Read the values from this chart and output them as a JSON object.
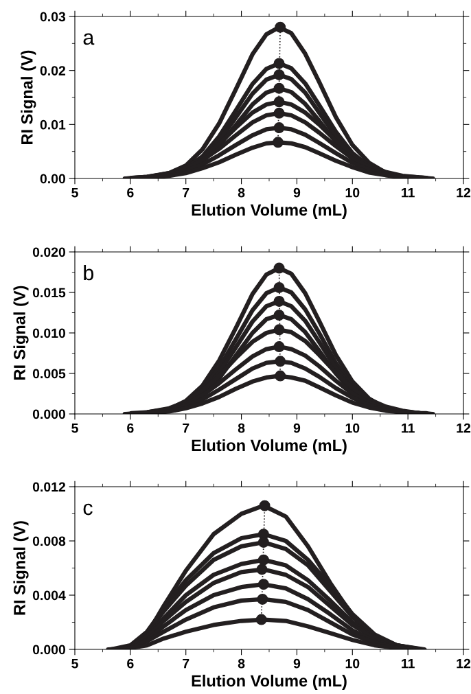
{
  "chart_data": [
    {
      "type": "line",
      "xlabel": "Elution Volume (mL)",
      "ylabel": "RI Signal (V)",
      "annotations": [
        "a"
      ],
      "grid": false,
      "legend": false,
      "xlim": [
        5,
        12
      ],
      "xticks": [
        5,
        6,
        7,
        8,
        9,
        10,
        11,
        12
      ],
      "ylim": [
        0,
        0.03
      ],
      "yticks": [
        {
          "value": 0,
          "label": "0.00"
        },
        {
          "value": 0.01,
          "label": "0.01"
        },
        {
          "value": 0.02,
          "label": "0.02"
        },
        {
          "value": 0.03,
          "label": "0.03"
        }
      ],
      "series": [
        {
          "color": "#231f20",
          "x": [
            5.9,
            6.3,
            6.7,
            7.0,
            7.3,
            7.6,
            7.9,
            8.2,
            8.45,
            8.68,
            8.9,
            9.15,
            9.4,
            9.7,
            10.0,
            10.3,
            10.6,
            10.9,
            11.2,
            11.45
          ],
          "values": [
            0.0,
            0.0002,
            0.001,
            0.0024,
            0.0054,
            0.0102,
            0.0165,
            0.023,
            0.0267,
            0.028,
            0.0269,
            0.0231,
            0.0179,
            0.0114,
            0.0062,
            0.0029,
            0.0011,
            0.0004,
            0.0001,
            0.0
          ]
        },
        {
          "color": "#231f20",
          "x": [
            5.93,
            6.3,
            6.7,
            7.0,
            7.3,
            7.6,
            7.9,
            8.2,
            8.45,
            8.68,
            8.9,
            9.15,
            9.4,
            9.7,
            10.0,
            10.3,
            10.6,
            10.9,
            11.2,
            11.42
          ],
          "values": [
            0.0,
            0.0002,
            0.0007,
            0.0019,
            0.0041,
            0.0078,
            0.0126,
            0.0175,
            0.0203,
            0.0213,
            0.0204,
            0.0176,
            0.0136,
            0.0087,
            0.0047,
            0.0022,
            0.0009,
            0.0003,
            0.0001,
            0.0
          ]
        },
        {
          "color": "#231f20",
          "x": [
            5.96,
            6.3,
            6.7,
            7.0,
            7.3,
            7.6,
            7.9,
            8.2,
            8.45,
            8.68,
            8.9,
            9.15,
            9.4,
            9.7,
            10.0,
            10.3,
            10.6,
            10.9,
            11.2,
            11.39
          ],
          "values": [
            0.0,
            0.0001,
            0.0007,
            0.0017,
            0.0037,
            0.007,
            0.0113,
            0.0157,
            0.0183,
            0.0192,
            0.0184,
            0.0159,
            0.0122,
            0.0078,
            0.0042,
            0.002,
            0.0008,
            0.0003,
            0.0001,
            0.0
          ]
        },
        {
          "color": "#231f20",
          "x": [
            5.99,
            6.3,
            6.7,
            7.0,
            7.3,
            7.6,
            7.9,
            8.2,
            8.45,
            8.68,
            8.9,
            9.15,
            9.4,
            9.7,
            10.0,
            10.3,
            10.6,
            10.9,
            11.2,
            11.36
          ],
          "values": [
            0.0,
            0.0001,
            0.0006,
            0.0015,
            0.0032,
            0.0061,
            0.0099,
            0.0137,
            0.0159,
            0.0167,
            0.016,
            0.0138,
            0.0107,
            0.0068,
            0.0037,
            0.0017,
            0.0007,
            0.0002,
            0.0001,
            0.0
          ]
        },
        {
          "color": "#231f20",
          "x": [
            6.02,
            6.3,
            6.7,
            7.0,
            7.3,
            7.6,
            7.9,
            8.2,
            8.45,
            8.68,
            8.9,
            9.15,
            9.4,
            9.7,
            10.0,
            10.3,
            10.6,
            10.9,
            11.2,
            11.33
          ],
          "values": [
            0.0001,
            0.0003,
            0.001,
            0.0021,
            0.0039,
            0.0064,
            0.0094,
            0.0122,
            0.0137,
            0.0142,
            0.0137,
            0.0122,
            0.01,
            0.007,
            0.0044,
            0.0024,
            0.0012,
            0.0005,
            0.0002,
            0.0001
          ]
        },
        {
          "color": "#231f20",
          "x": [
            6.05,
            6.3,
            6.7,
            7.0,
            7.3,
            7.6,
            7.9,
            8.2,
            8.45,
            8.68,
            8.9,
            9.15,
            9.4,
            9.7,
            10.0,
            10.3,
            10.6,
            10.9,
            11.2,
            11.3
          ],
          "values": [
            0.0001,
            0.0003,
            0.0009,
            0.0018,
            0.0034,
            0.0055,
            0.008,
            0.0104,
            0.0117,
            0.0121,
            0.0117,
            0.0104,
            0.0085,
            0.006,
            0.0037,
            0.0021,
            0.001,
            0.0004,
            0.0002,
            0.0001
          ]
        },
        {
          "color": "#231f20",
          "x": [
            6.08,
            6.3,
            6.7,
            7.0,
            7.3,
            7.6,
            7.9,
            8.2,
            8.45,
            8.68,
            8.9,
            9.15,
            9.4,
            9.7,
            10.0,
            10.3,
            10.6,
            10.9,
            11.2,
            11.27
          ],
          "values": [
            0.0001,
            0.0002,
            0.0007,
            0.0014,
            0.0026,
            0.0043,
            0.0062,
            0.008,
            0.0091,
            0.0094,
            0.0091,
            0.0081,
            0.0066,
            0.0047,
            0.0029,
            0.0016,
            0.0008,
            0.0003,
            0.0001,
            0.0001
          ]
        },
        {
          "color": "#231f20",
          "x": [
            6.11,
            6.3,
            6.7,
            7.0,
            7.3,
            7.6,
            7.9,
            8.2,
            8.45,
            8.68,
            8.9,
            9.15,
            9.4,
            9.7,
            10.0,
            10.3,
            10.6,
            10.9,
            11.2,
            11.24
          ],
          "values": [
            0.0,
            0.0001,
            0.0005,
            0.001,
            0.0019,
            0.003,
            0.0044,
            0.0057,
            0.0065,
            0.0067,
            0.0065,
            0.0058,
            0.0047,
            0.0033,
            0.0021,
            0.0011,
            0.0006,
            0.0002,
            0.0001,
            0.0
          ]
        },
        {
          "type": "line",
          "line_style": "dotted",
          "color": "#231f20",
          "x": [
            8.66,
            8.7
          ],
          "values": [
            0.0067,
            0.028
          ]
        },
        {
          "type": "scatter",
          "marker": "circle",
          "color": "#231f20",
          "x": [
            8.7,
            8.68,
            8.68,
            8.68,
            8.68,
            8.68,
            8.68,
            8.66
          ],
          "values": [
            0.028,
            0.0213,
            0.0192,
            0.0167,
            0.0142,
            0.0121,
            0.0094,
            0.0067
          ]
        }
      ]
    },
    {
      "type": "line",
      "xlabel": "Elution Volume (mL)",
      "ylabel": "RI Signal (V)",
      "annotations": [
        "b"
      ],
      "grid": false,
      "legend": false,
      "xlim": [
        5,
        12
      ],
      "xticks": [
        5,
        6,
        7,
        8,
        9,
        10,
        11,
        12
      ],
      "ylim": [
        0,
        0.02
      ],
      "yticks": [
        {
          "value": 0,
          "label": "0.000"
        },
        {
          "value": 0.005,
          "label": "0.005"
        },
        {
          "value": 0.01,
          "label": "0.010"
        },
        {
          "value": 0.015,
          "label": "0.015"
        },
        {
          "value": 0.02,
          "label": "0.020"
        }
      ],
      "series": [
        {
          "color": "#231f20",
          "x": [
            5.9,
            6.3,
            6.7,
            7.0,
            7.3,
            7.6,
            7.9,
            8.2,
            8.45,
            8.68,
            8.9,
            9.15,
            9.4,
            9.7,
            10.0,
            10.3,
            10.6,
            10.9,
            11.2,
            11.45
          ],
          "values": [
            0.0,
            0.0001,
            0.0006,
            0.0016,
            0.0035,
            0.0066,
            0.0106,
            0.0148,
            0.0172,
            0.018,
            0.0173,
            0.0149,
            0.0115,
            0.0073,
            0.004,
            0.0019,
            0.0007,
            0.0003,
            0.0001,
            0.0
          ]
        },
        {
          "color": "#231f20",
          "x": [
            5.93,
            6.3,
            6.7,
            7.0,
            7.3,
            7.6,
            7.9,
            8.2,
            8.45,
            8.68,
            8.9,
            9.15,
            9.4,
            9.7,
            10.0,
            10.3,
            10.6,
            10.9,
            11.2,
            11.42
          ],
          "values": [
            0.0,
            0.0001,
            0.0005,
            0.0014,
            0.003,
            0.0057,
            0.0092,
            0.0128,
            0.0149,
            0.0156,
            0.015,
            0.0129,
            0.01,
            0.0063,
            0.0034,
            0.0016,
            0.0006,
            0.0002,
            0.0001,
            0.0
          ]
        },
        {
          "color": "#231f20",
          "x": [
            5.96,
            6.3,
            6.7,
            7.0,
            7.3,
            7.6,
            7.9,
            8.2,
            8.45,
            8.68,
            8.9,
            9.15,
            9.4,
            9.7,
            10.0,
            10.3,
            10.6,
            10.9,
            11.2,
            11.39
          ],
          "values": [
            0.0,
            0.0001,
            0.0005,
            0.0012,
            0.0027,
            0.0051,
            0.0082,
            0.0114,
            0.0133,
            0.0139,
            0.0133,
            0.0115,
            0.0089,
            0.0057,
            0.0031,
            0.0014,
            0.0006,
            0.0002,
            0.0001,
            0.0
          ]
        },
        {
          "color": "#231f20",
          "x": [
            5.99,
            6.3,
            6.7,
            7.0,
            7.3,
            7.6,
            7.9,
            8.2,
            8.45,
            8.68,
            8.9,
            9.15,
            9.4,
            9.7,
            10.0,
            10.3,
            10.6,
            10.9,
            11.2,
            11.36
          ],
          "values": [
            0.0,
            0.0001,
            0.0004,
            0.0011,
            0.0023,
            0.0044,
            0.0072,
            0.01,
            0.0117,
            0.0122,
            0.0117,
            0.0101,
            0.0078,
            0.005,
            0.0027,
            0.0013,
            0.0005,
            0.0002,
            0.0,
            0.0
          ]
        },
        {
          "color": "#231f20",
          "x": [
            6.02,
            6.3,
            6.7,
            7.0,
            7.3,
            7.6,
            7.9,
            8.2,
            8.45,
            8.68,
            8.9,
            9.15,
            9.4,
            9.7,
            10.0,
            10.3,
            10.6,
            10.9,
            11.2,
            11.33
          ],
          "values": [
            0.0001,
            0.0002,
            0.0007,
            0.0015,
            0.0029,
            0.0047,
            0.0069,
            0.0089,
            0.01,
            0.0104,
            0.0101,
            0.009,
            0.0073,
            0.0051,
            0.0032,
            0.0018,
            0.0009,
            0.0004,
            0.0001,
            0.0001
          ]
        },
        {
          "color": "#231f20",
          "x": [
            6.05,
            6.3,
            6.7,
            7.0,
            7.3,
            7.6,
            7.9,
            8.2,
            8.45,
            8.68,
            8.9,
            9.15,
            9.4,
            9.7,
            10.0,
            10.3,
            10.6,
            10.9,
            11.2,
            11.3
          ],
          "values": [
            0.0,
            0.0002,
            0.0006,
            0.0012,
            0.0023,
            0.0038,
            0.0055,
            0.0071,
            0.008,
            0.0083,
            0.008,
            0.0072,
            0.0059,
            0.0041,
            0.0025,
            0.0014,
            0.0007,
            0.0003,
            0.0001,
            0.0
          ]
        },
        {
          "color": "#231f20",
          "x": [
            6.08,
            6.3,
            6.7,
            7.0,
            7.3,
            7.6,
            7.9,
            8.2,
            8.45,
            8.68,
            8.9,
            9.15,
            9.4,
            9.7,
            10.0,
            10.3,
            10.6,
            10.9,
            11.2,
            11.27
          ],
          "values": [
            0.0,
            0.0001,
            0.0005,
            0.001,
            0.0018,
            0.003,
            0.0043,
            0.0056,
            0.0063,
            0.0065,
            0.0063,
            0.0056,
            0.0046,
            0.0032,
            0.002,
            0.0011,
            0.0005,
            0.0002,
            0.0001,
            0.0
          ]
        },
        {
          "color": "#231f20",
          "x": [
            6.11,
            6.3,
            6.7,
            7.0,
            7.3,
            7.6,
            7.9,
            8.2,
            8.45,
            8.68,
            8.9,
            9.15,
            9.4,
            9.7,
            10.0,
            10.3,
            10.6,
            10.9,
            11.2,
            11.24
          ],
          "values": [
            0.0,
            0.0001,
            0.0003,
            0.0007,
            0.0013,
            0.0021,
            0.0031,
            0.004,
            0.0045,
            0.0047,
            0.0045,
            0.0041,
            0.0033,
            0.0023,
            0.0014,
            0.0008,
            0.0004,
            0.0002,
            0.0001,
            0.0
          ]
        },
        {
          "type": "line",
          "line_style": "dotted",
          "color": "#231f20",
          "x": [
            8.7,
            8.68
          ],
          "values": [
            0.0047,
            0.018
          ]
        },
        {
          "type": "scatter",
          "marker": "circle",
          "color": "#231f20",
          "x": [
            8.68,
            8.68,
            8.68,
            8.68,
            8.68,
            8.68,
            8.7,
            8.7
          ],
          "values": [
            0.018,
            0.0156,
            0.0139,
            0.0122,
            0.0104,
            0.0083,
            0.0065,
            0.0047
          ]
        }
      ]
    },
    {
      "type": "line",
      "xlabel": "Elution Volume (mL)",
      "ylabel": "RI Signal (V)",
      "annotations": [
        "c"
      ],
      "grid": false,
      "legend": false,
      "xlim": [
        5,
        12
      ],
      "xticks": [
        5,
        6,
        7,
        8,
        9,
        10,
        11,
        12
      ],
      "ylim": [
        0,
        0.012
      ],
      "yticks": [
        {
          "value": 0,
          "label": "0.000"
        },
        {
          "value": 0.004,
          "label": "0.004"
        },
        {
          "value": 0.008,
          "label": "0.008"
        },
        {
          "value": 0.012,
          "label": "0.012"
        }
      ],
      "series": [
        {
          "color": "#231f20",
          "x": [
            5.6,
            6.0,
            6.3,
            6.6,
            7.0,
            7.5,
            8.0,
            8.4,
            8.8,
            9.2,
            9.6,
            10.0,
            10.4,
            10.8,
            11.3
          ],
          "values": [
            0,
            0.0001,
            0.0011,
            0.0032,
            0.0058,
            0.0085,
            0.01,
            0.0106,
            0.0098,
            0.0076,
            0.0049,
            0.0025,
            0.001,
            0.0003,
            0
          ]
        },
        {
          "color": "#231f20",
          "x": [
            5.65,
            6.0,
            6.3,
            6.6,
            7.0,
            7.5,
            8.0,
            8.4,
            8.8,
            9.2,
            9.6,
            10.0,
            10.4,
            10.8,
            11.25
          ],
          "values": [
            0,
            0.0003,
            0.0013,
            0.003,
            0.0051,
            0.0071,
            0.0082,
            0.0085,
            0.008,
            0.0066,
            0.0047,
            0.0026,
            0.0011,
            0.0003,
            0
          ]
        },
        {
          "color": "#231f20",
          "x": [
            5.7,
            6.0,
            6.3,
            6.6,
            7.0,
            7.5,
            8.0,
            8.4,
            8.8,
            9.2,
            9.6,
            10.0,
            10.4,
            10.8,
            11.2
          ],
          "values": [
            0,
            0.0002,
            0.0012,
            0.0028,
            0.0047,
            0.0066,
            0.0076,
            0.0079,
            0.0074,
            0.0062,
            0.0043,
            0.0024,
            0.001,
            0.0003,
            0
          ]
        },
        {
          "color": "#231f20",
          "x": [
            5.75,
            6.0,
            6.3,
            6.6,
            7.0,
            7.5,
            8.0,
            8.4,
            8.8,
            9.2,
            9.6,
            10.0,
            10.4,
            10.8,
            11.15
          ],
          "values": [
            0,
            0.0002,
            0.001,
            0.0023,
            0.004,
            0.0055,
            0.0063,
            0.0066,
            0.0062,
            0.0051,
            0.0036,
            0.002,
            0.0009,
            0.0003,
            0
          ]
        },
        {
          "color": "#231f20",
          "x": [
            5.8,
            6.0,
            6.3,
            6.6,
            7.0,
            7.5,
            8.0,
            8.4,
            8.8,
            9.2,
            9.6,
            10.0,
            10.4,
            10.8,
            11.1
          ],
          "values": [
            0,
            0.0002,
            0.0009,
            0.0021,
            0.0035,
            0.0049,
            0.0057,
            0.0059,
            0.0055,
            0.0046,
            0.0032,
            0.0018,
            0.0008,
            0.0002,
            0
          ]
        },
        {
          "color": "#231f20",
          "x": [
            5.85,
            6.0,
            6.3,
            6.6,
            7.0,
            7.5,
            8.0,
            8.4,
            8.8,
            9.2,
            9.6,
            10.0,
            10.4,
            10.8,
            11.05
          ],
          "values": [
            0,
            0.0001,
            0.0007,
            0.0017,
            0.0029,
            0.004,
            0.0046,
            0.0048,
            0.0045,
            0.0037,
            0.0026,
            0.0014,
            0.0006,
            0.0002,
            0
          ]
        },
        {
          "color": "#231f20",
          "x": [
            5.9,
            6.0,
            6.3,
            6.6,
            7.0,
            7.5,
            8.0,
            8.4,
            8.8,
            9.2,
            9.6,
            10.0,
            10.4,
            10.8,
            11.0
          ],
          "values": [
            0,
            0.0001,
            0.0006,
            0.0013,
            0.0022,
            0.0031,
            0.0036,
            0.0037,
            0.0035,
            0.0029,
            0.002,
            0.0011,
            0.0005,
            0.0001,
            0
          ]
        },
        {
          "color": "#231f20",
          "x": [
            5.95,
            6.0,
            6.3,
            6.6,
            7.0,
            7.5,
            8.0,
            8.4,
            8.8,
            9.2,
            9.6,
            10.0,
            10.4,
            10.8,
            10.95
          ],
          "values": [
            0,
            0.0001,
            0.0003,
            0.0008,
            0.0013,
            0.0018,
            0.0021,
            0.0022,
            0.0021,
            0.0017,
            0.0012,
            0.0007,
            0.0003,
            0.0001,
            0
          ]
        },
        {
          "type": "line",
          "line_style": "dotted",
          "color": "#231f20",
          "x": [
            8.36,
            8.42
          ],
          "values": [
            0.0022,
            0.0106
          ]
        },
        {
          "type": "scatter",
          "marker": "circle",
          "color": "#231f20",
          "x": [
            8.42,
            8.4,
            8.4,
            8.4,
            8.37,
            8.4,
            8.38,
            8.36
          ],
          "values": [
            0.0106,
            0.0085,
            0.0079,
            0.0066,
            0.0059,
            0.0048,
            0.0037,
            0.0022
          ]
        }
      ]
    }
  ]
}
